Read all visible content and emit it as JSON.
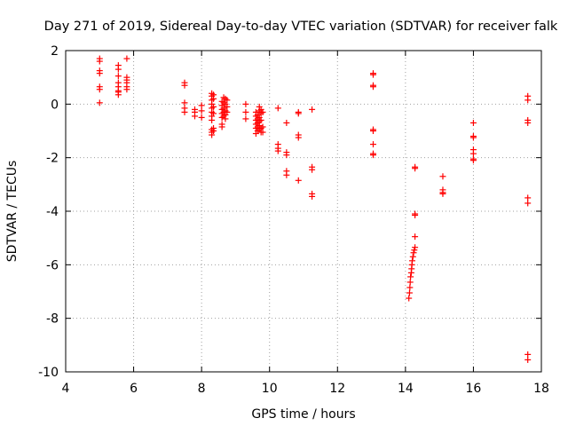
{
  "chart_data": {
    "type": "scatter",
    "title": "Day 271 of 2019, Sidereal Day-to-day VTEC variation (SDTVAR) for receiver falk",
    "xlabel": "GPS time / hours",
    "ylabel": "SDTVAR / TECUs",
    "xlim": [
      4,
      18
    ],
    "ylim": [
      -10,
      2
    ],
    "xticks": [
      4,
      6,
      8,
      10,
      12,
      14,
      16,
      18
    ],
    "yticks": [
      -10,
      -8,
      -6,
      -4,
      -2,
      0,
      2
    ],
    "grid": true,
    "marker": "plus",
    "color": "#ff0000",
    "series": [
      {
        "name": "SDTVAR",
        "points": [
          [
            5.0,
            1.7
          ],
          [
            5.0,
            1.6
          ],
          [
            5.0,
            1.25
          ],
          [
            5.0,
            1.15
          ],
          [
            5.0,
            0.65
          ],
          [
            5.0,
            0.55
          ],
          [
            5.0,
            0.05
          ],
          [
            5.55,
            1.45
          ],
          [
            5.55,
            1.3
          ],
          [
            5.55,
            1.05
          ],
          [
            5.55,
            0.8
          ],
          [
            5.55,
            0.65
          ],
          [
            5.55,
            0.5
          ],
          [
            5.55,
            0.45
          ],
          [
            5.55,
            0.35
          ],
          [
            5.8,
            1.7
          ],
          [
            5.8,
            1.0
          ],
          [
            5.8,
            0.9
          ],
          [
            5.8,
            0.8
          ],
          [
            5.8,
            0.65
          ],
          [
            5.8,
            0.55
          ],
          [
            7.5,
            0.8
          ],
          [
            7.5,
            0.7
          ],
          [
            7.5,
            0.05
          ],
          [
            7.5,
            -0.15
          ],
          [
            7.5,
            -0.3
          ],
          [
            7.8,
            -0.2
          ],
          [
            7.8,
            -0.3
          ],
          [
            7.8,
            -0.45
          ],
          [
            8.0,
            -0.05
          ],
          [
            8.0,
            -0.25
          ],
          [
            8.0,
            -0.5
          ],
          [
            8.3,
            0.4
          ],
          [
            8.3,
            0.3
          ],
          [
            8.3,
            0.15
          ],
          [
            8.3,
            0.0
          ],
          [
            8.3,
            -0.15
          ],
          [
            8.3,
            -0.3
          ],
          [
            8.3,
            -0.45
          ],
          [
            8.3,
            -0.6
          ],
          [
            8.3,
            -0.95
          ],
          [
            8.3,
            -1.05
          ],
          [
            8.3,
            -1.15
          ],
          [
            8.35,
            0.35
          ],
          [
            8.35,
            0.2
          ],
          [
            8.35,
            -0.1
          ],
          [
            8.35,
            -0.35
          ],
          [
            8.35,
            -0.9
          ],
          [
            8.35,
            -1.0
          ],
          [
            8.6,
            0.1
          ],
          [
            8.6,
            -0.05
          ],
          [
            8.6,
            -0.2
          ],
          [
            8.6,
            -0.35
          ],
          [
            8.6,
            -0.5
          ],
          [
            8.6,
            -0.75
          ],
          [
            8.6,
            -0.85
          ],
          [
            8.65,
            0.25
          ],
          [
            8.65,
            0.05
          ],
          [
            8.65,
            -0.15
          ],
          [
            8.65,
            -0.3
          ],
          [
            8.65,
            -0.45
          ],
          [
            8.7,
            0.2
          ],
          [
            8.7,
            0.0
          ],
          [
            8.7,
            -0.25
          ],
          [
            8.7,
            -0.4
          ],
          [
            8.7,
            -0.55
          ],
          [
            8.75,
            0.15
          ],
          [
            8.75,
            -0.1
          ],
          [
            8.75,
            -0.3
          ],
          [
            9.3,
            0.0
          ],
          [
            9.3,
            -0.3
          ],
          [
            9.3,
            -0.55
          ],
          [
            9.6,
            -0.3
          ],
          [
            9.6,
            -0.45
          ],
          [
            9.6,
            -0.6
          ],
          [
            9.6,
            -0.75
          ],
          [
            9.6,
            -0.9
          ],
          [
            9.6,
            -1.1
          ],
          [
            9.65,
            -0.4
          ],
          [
            9.65,
            -0.55
          ],
          [
            9.65,
            -0.7
          ],
          [
            9.65,
            -0.85
          ],
          [
            9.65,
            -1.0
          ],
          [
            9.7,
            -0.1
          ],
          [
            9.7,
            -0.25
          ],
          [
            9.7,
            -0.5
          ],
          [
            9.7,
            -0.65
          ],
          [
            9.7,
            -0.8
          ],
          [
            9.7,
            -0.95
          ],
          [
            9.75,
            -0.2
          ],
          [
            9.75,
            -0.35
          ],
          [
            9.75,
            -0.6
          ],
          [
            9.75,
            -0.9
          ],
          [
            9.75,
            -1.05
          ],
          [
            9.8,
            -0.3
          ],
          [
            9.8,
            -0.85
          ],
          [
            9.8,
            -1.05
          ],
          [
            10.25,
            -0.15
          ],
          [
            10.25,
            -1.5
          ],
          [
            10.25,
            -1.65
          ],
          [
            10.25,
            -1.75
          ],
          [
            10.5,
            -0.7
          ],
          [
            10.5,
            -1.8
          ],
          [
            10.5,
            -1.9
          ],
          [
            10.5,
            -2.5
          ],
          [
            10.5,
            -2.65
          ],
          [
            10.85,
            -0.3
          ],
          [
            10.85,
            -0.35
          ],
          [
            10.85,
            -1.15
          ],
          [
            10.85,
            -1.25
          ],
          [
            10.85,
            -2.85
          ],
          [
            11.25,
            -0.2
          ],
          [
            11.25,
            -2.35
          ],
          [
            11.25,
            -2.45
          ],
          [
            11.25,
            -3.35
          ],
          [
            11.25,
            -3.45
          ],
          [
            13.05,
            1.15
          ],
          [
            13.05,
            1.1
          ],
          [
            13.05,
            0.7
          ],
          [
            13.05,
            0.65
          ],
          [
            13.05,
            -0.95
          ],
          [
            13.05,
            -1.0
          ],
          [
            13.05,
            -1.5
          ],
          [
            13.05,
            -1.85
          ],
          [
            13.05,
            -1.9
          ],
          [
            14.1,
            -7.25
          ],
          [
            14.12,
            -7.05
          ],
          [
            14.13,
            -6.85
          ],
          [
            14.14,
            -6.65
          ],
          [
            14.15,
            -6.45
          ],
          [
            14.17,
            -6.3
          ],
          [
            14.18,
            -6.15
          ],
          [
            14.19,
            -6.0
          ],
          [
            14.2,
            -5.85
          ],
          [
            14.22,
            -5.7
          ],
          [
            14.24,
            -5.55
          ],
          [
            14.26,
            -5.45
          ],
          [
            14.28,
            -5.35
          ],
          [
            14.28,
            -4.95
          ],
          [
            14.28,
            -4.15
          ],
          [
            14.28,
            -4.1
          ],
          [
            14.28,
            -2.35
          ],
          [
            14.28,
            -2.4
          ],
          [
            15.1,
            -2.7
          ],
          [
            15.1,
            -3.2
          ],
          [
            15.1,
            -3.3
          ],
          [
            15.1,
            -3.35
          ],
          [
            16.0,
            -0.7
          ],
          [
            16.0,
            -1.2
          ],
          [
            16.0,
            -1.25
          ],
          [
            16.0,
            -1.7
          ],
          [
            16.0,
            -1.85
          ],
          [
            16.0,
            -2.05
          ],
          [
            16.0,
            -2.1
          ],
          [
            17.6,
            0.3
          ],
          [
            17.6,
            0.15
          ],
          [
            17.6,
            -0.6
          ],
          [
            17.6,
            -0.7
          ],
          [
            17.6,
            -3.5
          ],
          [
            17.6,
            -3.7
          ],
          [
            17.6,
            -9.35
          ],
          [
            17.6,
            -9.55
          ]
        ]
      }
    ]
  }
}
